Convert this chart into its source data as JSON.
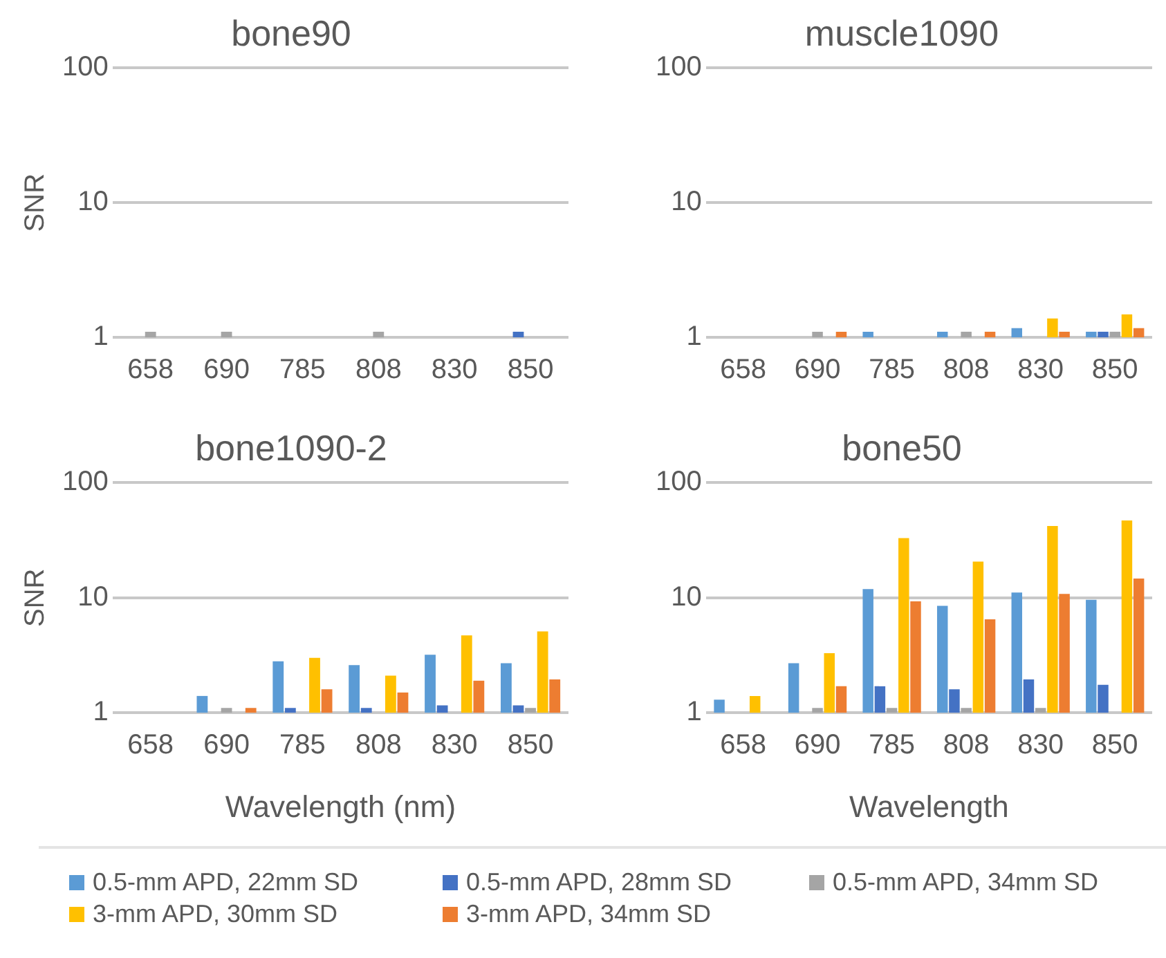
{
  "chart_data": [
    {
      "type": "bar",
      "title": "bone90",
      "ylabel": "SNR",
      "categories": [
        "658",
        "690",
        "785",
        "808",
        "830",
        "850"
      ],
      "log": true,
      "ylim": [
        1,
        100
      ],
      "yticks": [
        1,
        10,
        100
      ],
      "grid": "y",
      "series": [
        {
          "color": "#5b9bd5",
          "values": [
            null,
            null,
            null,
            null,
            null,
            null
          ]
        },
        {
          "color": "#4472c4",
          "values": [
            null,
            null,
            null,
            null,
            null,
            1.1
          ]
        },
        {
          "color": "#a5a5a5",
          "values": [
            1.1,
            1.1,
            null,
            1.1,
            null,
            null
          ]
        },
        {
          "color": "#ffc000",
          "values": [
            null,
            null,
            null,
            null,
            null,
            null
          ]
        },
        {
          "color": "#ed7d31",
          "values": [
            null,
            null,
            null,
            null,
            null,
            null
          ]
        }
      ]
    },
    {
      "type": "bar",
      "title": "muscle1090",
      "categories": [
        "658",
        "690",
        "785",
        "808",
        "830",
        "850"
      ],
      "log": true,
      "ylim": [
        1,
        100
      ],
      "yticks": [
        1,
        10,
        100
      ],
      "grid": "y",
      "series": [
        {
          "color": "#5b9bd5",
          "values": [
            null,
            null,
            1.1,
            1.1,
            1.17,
            1.1
          ]
        },
        {
          "color": "#4472c4",
          "values": [
            null,
            null,
            null,
            null,
            null,
            1.1
          ]
        },
        {
          "color": "#a5a5a5",
          "values": [
            null,
            1.1,
            null,
            1.1,
            null,
            1.1
          ]
        },
        {
          "color": "#ffc000",
          "values": [
            null,
            null,
            null,
            null,
            1.38,
            1.48
          ]
        },
        {
          "color": "#ed7d31",
          "values": [
            null,
            1.1,
            null,
            1.1,
            1.1,
            1.17
          ]
        }
      ]
    },
    {
      "type": "bar",
      "title": "bone1090-2",
      "ylabel": "SNR",
      "xlabel": "Wavelength (nm)",
      "categories": [
        "658",
        "690",
        "785",
        "808",
        "830",
        "850"
      ],
      "log": true,
      "ylim": [
        1,
        100
      ],
      "yticks": [
        1,
        10,
        100
      ],
      "grid": "y",
      "series": [
        {
          "color": "#5b9bd5",
          "values": [
            null,
            1.4,
            2.8,
            2.6,
            3.2,
            2.7
          ]
        },
        {
          "color": "#4472c4",
          "values": [
            null,
            null,
            1.1,
            1.1,
            1.16,
            1.16
          ]
        },
        {
          "color": "#a5a5a5",
          "values": [
            null,
            1.1,
            null,
            null,
            null,
            1.1
          ]
        },
        {
          "color": "#ffc000",
          "values": [
            null,
            null,
            3.0,
            2.1,
            4.7,
            5.1
          ]
        },
        {
          "color": "#ed7d31",
          "values": [
            null,
            1.1,
            1.6,
            1.5,
            1.9,
            1.95
          ]
        }
      ]
    },
    {
      "type": "bar",
      "title": "bone50",
      "xlabel": "Wavelength",
      "categories": [
        "658",
        "690",
        "785",
        "808",
        "830",
        "850"
      ],
      "log": true,
      "ylim": [
        1,
        100
      ],
      "yticks": [
        1,
        10,
        100
      ],
      "grid": "y",
      "legend": "bottom",
      "series": [
        {
          "name": "0.5-mm APD, 22mm SD",
          "color": "#5b9bd5",
          "values": [
            1.3,
            2.7,
            11.9,
            8.5,
            11.1,
            9.6
          ]
        },
        {
          "name": "0.5-mm APD, 28mm SD",
          "color": "#4472c4",
          "values": [
            null,
            null,
            1.7,
            1.6,
            1.95,
            1.75
          ]
        },
        {
          "name": "0.5-mm APD, 34mm SD",
          "color": "#a5a5a5",
          "values": [
            null,
            1.1,
            1.1,
            1.1,
            1.1,
            null
          ]
        },
        {
          "name": "3-mm APD, 30mm SD",
          "color": "#ffc000",
          "values": [
            1.4,
            3.3,
            33,
            20.6,
            42,
            47
          ]
        },
        {
          "name": "3-mm APD, 34mm SD",
          "color": "#ed7d31",
          "values": [
            null,
            1.7,
            9.3,
            6.5,
            10.8,
            14.7
          ]
        }
      ]
    }
  ]
}
